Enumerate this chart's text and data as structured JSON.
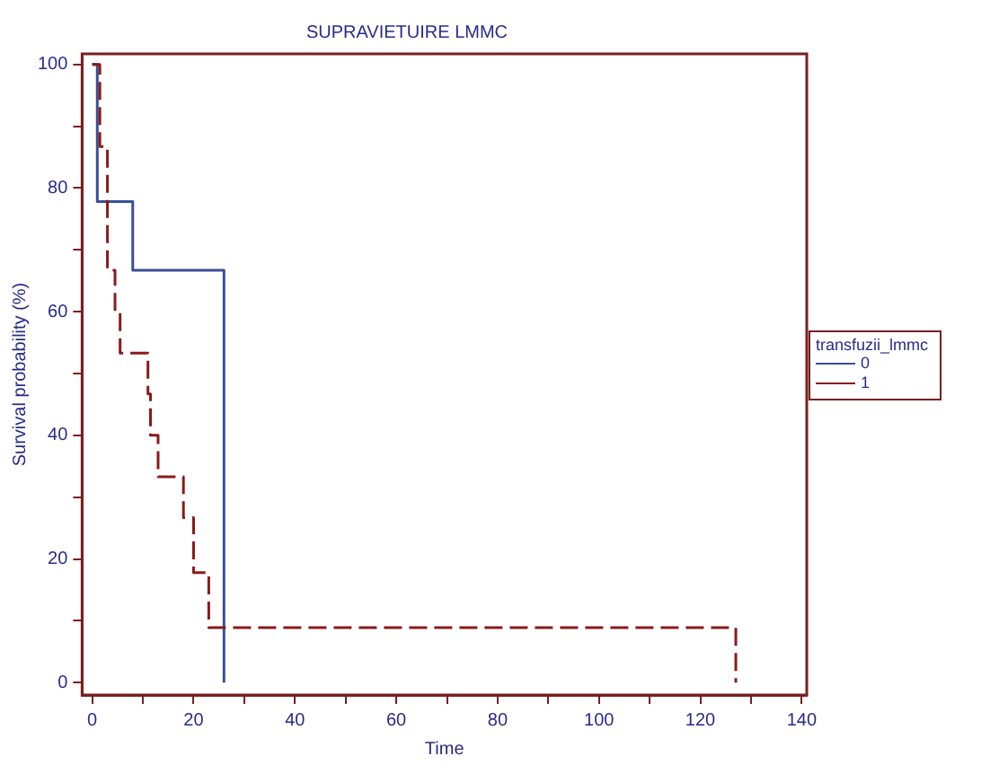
{
  "chart_data": {
    "type": "step",
    "title": "SUPRAVIETUIRE LMMC",
    "xlabel": "Time",
    "ylabel": "Survival probability (%)",
    "legend_title": "transfuzii_lmmc",
    "legend": "right",
    "grid": false,
    "marker": "none",
    "xlim": [
      -2,
      141
    ],
    "ylim": [
      -2,
      101.7
    ],
    "xticks": [
      0,
      {
        "value": 10,
        "label": null
      },
      20,
      {
        "value": 30,
        "label": null
      },
      40,
      {
        "value": 50,
        "label": null
      },
      60,
      {
        "value": 70,
        "label": null
      },
      80,
      {
        "value": 90,
        "label": null
      },
      100,
      {
        "value": 110,
        "label": null
      },
      120,
      {
        "value": 130,
        "label": null
      },
      140
    ],
    "yticks": [
      0,
      {
        "value": 10,
        "label": null
      },
      20,
      {
        "value": 30,
        "label": null
      },
      40,
      {
        "value": 50,
        "label": null
      },
      60,
      {
        "value": 70,
        "label": null
      },
      80,
      {
        "value": 90,
        "label": null
      },
      100
    ],
    "series": [
      {
        "name": "0",
        "color": "#3a4f9a",
        "line_style": "solid",
        "x": [
          0,
          1,
          8,
          26
        ],
        "values": [
          100,
          77.8,
          66.7,
          0
        ]
      },
      {
        "name": "1",
        "color": "#8b1a1a",
        "line_style": "dashed",
        "x": [
          0,
          1.5,
          3,
          4.5,
          5.5,
          11,
          11.5,
          13,
          18,
          20,
          23,
          127
        ],
        "values": [
          100,
          86.7,
          66.7,
          60,
          53.3,
          46.7,
          40,
          33.3,
          26.7,
          17.8,
          8.9,
          0
        ]
      }
    ]
  }
}
